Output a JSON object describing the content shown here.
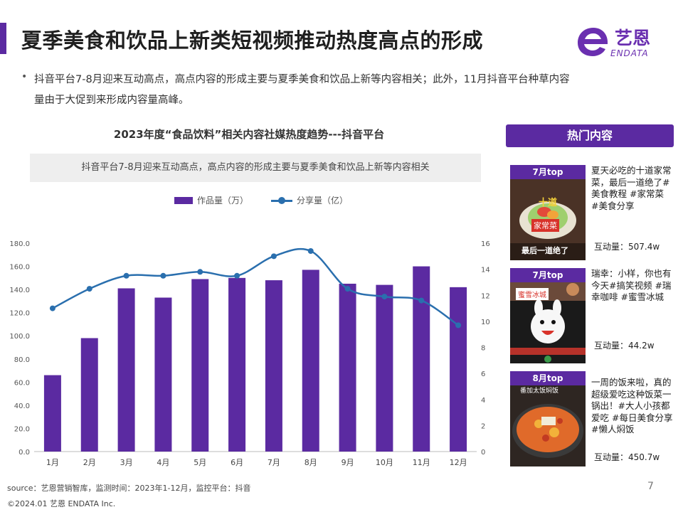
{
  "header": {
    "title": "夏季美食和饮品上新类短视频推动热度高点的形成",
    "logo_name": "艺恩",
    "logo_sub": "ENDATA",
    "logo_letter": "e"
  },
  "intro": {
    "bullet": "•",
    "text": "抖音平台7-8月迎来互动高点，高点内容的形成主要与夏季美食和饮品上新等内容相关；此外，11月抖音平台种草内容量由于大促到来形成内容量高峰。"
  },
  "chart_meta": {
    "subtitle": "抖音平台7-8月迎来互动高点，高点内容的形成主要与夏季美食和饮品上新等内容相关"
  },
  "chart_data": {
    "type": "bar",
    "title": "2023年度“食品饮料”相关内容社媒热度趋势---抖音平台",
    "categories": [
      "1月",
      "2月",
      "3月",
      "4月",
      "5月",
      "6月",
      "7月",
      "8月",
      "9月",
      "10月",
      "11月",
      "12月"
    ],
    "series": [
      {
        "name": "作品量（万）",
        "type": "bar",
        "axis": "left",
        "color": "#5b2aa1",
        "values": [
          66,
          98,
          141,
          133,
          149,
          150,
          148,
          157,
          145,
          144,
          160,
          142
        ]
      },
      {
        "name": "分享量（亿）",
        "type": "line",
        "axis": "right",
        "color": "#2a6fae",
        "values": [
          11.0,
          12.5,
          13.5,
          13.5,
          13.8,
          13.5,
          15.0,
          15.4,
          12.5,
          11.9,
          11.6,
          9.7
        ]
      }
    ],
    "ylim": [
      0,
      180
    ],
    "y_ticks": [
      "0.0",
      "20.0",
      "40.0",
      "60.0",
      "80.0",
      "100.0",
      "120.0",
      "140.0",
      "160.0",
      "180.0"
    ],
    "y2lim": [
      0,
      16
    ],
    "y2_ticks": [
      "0",
      "2",
      "4",
      "6",
      "8",
      "10",
      "12",
      "14",
      "16"
    ],
    "legend": "top-center",
    "grid": false
  },
  "side": {
    "header": "热门内容",
    "cards": [
      {
        "tag": "7月top",
        "text": "夏天必吃的十道家常菜，最后一道绝了#美食教程 #家常菜 #美食分享",
        "metric": "互动量：507.4w",
        "overlay_top": "十道",
        "overlay_mid": "家常菜",
        "overlay_bottom": "最后一道绝了"
      },
      {
        "tag": "7月top",
        "text": "瑞幸：小样，你也有今天#搞笑视频 #瑞幸咖啡 #蜜雪冰城",
        "metric": "互动量：44.2w",
        "overlay_top": "蜜雪冰城"
      },
      {
        "tag": "8月top",
        "text": "一周的饭来啦，真的超级爱吃这种饭菜一锅出！#大人小孩都爱吃 #每日美食分享 #懒人焖饭",
        "metric": "互动量：450.7w",
        "overlay_top": "番加太饭焖饭"
      }
    ]
  },
  "footer": {
    "source": "source：艺恩营销智库，监测时间：2023年1-12月，监控平台：抖音",
    "copyright": "©2024.01  艺恩 ENDATA Inc.",
    "page": "7"
  }
}
